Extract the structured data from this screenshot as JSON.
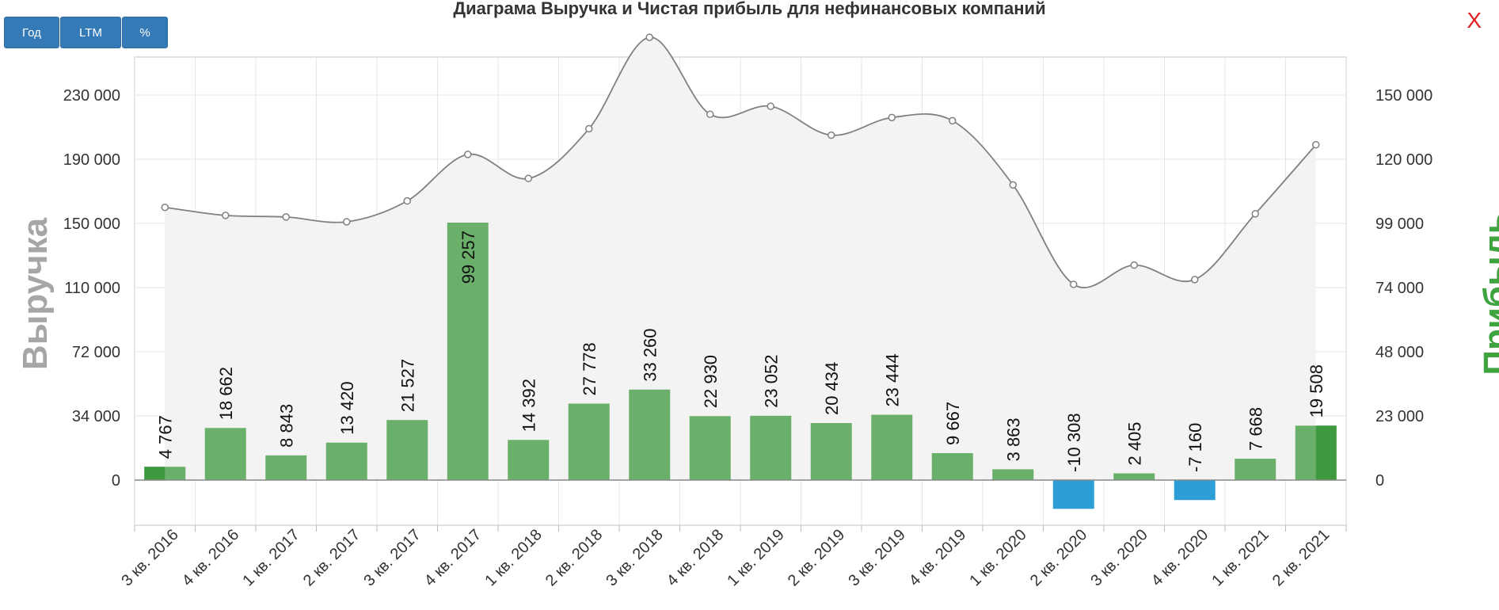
{
  "header": {
    "title": "Диаграма Выручка и Чистая прибыль для нефинансовых компаний",
    "close_label": "X"
  },
  "toolbar": {
    "buttons": [
      {
        "label": "Год"
      },
      {
        "label": "LTM"
      },
      {
        "label": "%"
      }
    ]
  },
  "colors": {
    "revenue_line": "#808080",
    "area_fill": "#f3f3f3",
    "profit_positive": "#6aaf6a",
    "profit_negative": "#2e9fd6",
    "last_bar_highlight": "#3e9a3e",
    "left_axis_title": "#a6a6a6",
    "right_axis_title": "#3fa33f"
  },
  "chart_data": {
    "type": "bar",
    "title": "Диаграма Выручка и Чистая прибыль для нефинансовых компаний",
    "categories": [
      "3 кв. 2016",
      "4 кв. 2016",
      "1 кв. 2017",
      "2 кв. 2017",
      "3 кв. 2017",
      "4 кв. 2017",
      "1 кв. 2018",
      "2 кв. 2018",
      "3 кв. 2018",
      "4 кв. 2018",
      "1 кв. 2019",
      "2 кв. 2019",
      "3 кв. 2019",
      "4 кв. 2019",
      "1 кв. 2020",
      "2 кв. 2020",
      "3 кв. 2020",
      "4 кв. 2020",
      "1 кв. 2021",
      "2 кв. 2021"
    ],
    "ylabel": "Выручка",
    "y2label": "Прибыль",
    "yticks": [
      "0",
      "34 000",
      "72 000",
      "110 000",
      "150 000",
      "190 000",
      "230 000"
    ],
    "y2ticks": [
      "0",
      "23 000",
      "48 000",
      "74 000",
      "99 000",
      "120 000",
      "150 000"
    ],
    "series": [
      {
        "name": "Выручка",
        "type": "area-line",
        "axis": "left",
        "values": [
          160000,
          155000,
          154000,
          151000,
          164000,
          193000,
          178000,
          209000,
          266000,
          218000,
          223000,
          205000,
          216000,
          214000,
          174000,
          112000,
          124000,
          115000,
          156000,
          199000
        ]
      },
      {
        "name": "Прибыль",
        "type": "bar",
        "axis": "right",
        "values": [
          4767,
          18662,
          8843,
          13420,
          21527,
          99257,
          14392,
          27778,
          33260,
          22930,
          23052,
          20434,
          23444,
          9667,
          3863,
          -10308,
          2405,
          -7160,
          7668,
          19508
        ],
        "labels": [
          "4 767",
          "18 662",
          "8 843",
          "13 420",
          "21 527",
          "99 257",
          "14 392",
          "27 778",
          "33 260",
          "22 930",
          "23 052",
          "20 434",
          "23 444",
          "9 667",
          "3 863",
          "-10 308",
          "2 405",
          "-7 160",
          "7 668",
          "19 508"
        ]
      }
    ],
    "grid": true
  }
}
